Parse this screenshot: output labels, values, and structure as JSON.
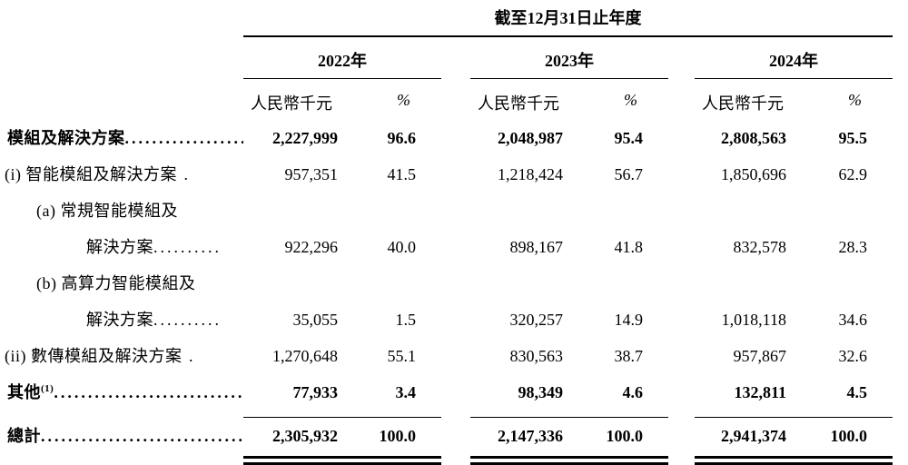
{
  "table": {
    "period_header": "截至12月31日止年度",
    "years": [
      "2022年",
      "2023年",
      "2024年"
    ],
    "col_amount": "人民幣千元",
    "col_percent": "%",
    "rows": [
      {
        "label": "模組及解決方案",
        "dots": "........................",
        "values": [
          "2,227,999",
          "96.6",
          "2,048,987",
          "95.4",
          "2,808,563",
          "95.5"
        ]
      },
      {
        "label": "(i) 智能模組及解決方案",
        "dots": " .",
        "values": [
          "957,351",
          "41.5",
          "1,218,424",
          "56.7",
          "1,850,696",
          "62.9"
        ]
      },
      {
        "label": "(a) 常規智能模組及",
        "dots": "",
        "values": [
          "",
          "",
          "",
          "",
          "",
          ""
        ]
      },
      {
        "label": "解決方案",
        "dots": "..........",
        "values": [
          "922,296",
          "40.0",
          "898,167",
          "41.8",
          "832,578",
          "28.3"
        ]
      },
      {
        "label": "(b) 高算力智能模組及",
        "dots": "",
        "values": [
          "",
          "",
          "",
          "",
          "",
          ""
        ]
      },
      {
        "label": "解決方案",
        "dots": "..........",
        "values": [
          "35,055",
          "1.5",
          "320,257",
          "14.9",
          "1,018,118",
          "34.6"
        ]
      },
      {
        "label": "(ii) 數傳模組及解決方案",
        "dots": " .",
        "values": [
          "1,270,648",
          "55.1",
          "830,563",
          "38.7",
          "957,867",
          "32.6"
        ]
      },
      {
        "label": "其他",
        "sup": "(1)",
        "dots": "................................",
        "values": [
          "77,933",
          "3.4",
          "98,349",
          "4.6",
          "132,811",
          "4.5"
        ]
      }
    ],
    "total": {
      "label": "總計",
      "dots": "................................",
      "values": [
        "2,305,932",
        "100.0",
        "2,147,336",
        "100.0",
        "2,941,374",
        "100.0"
      ]
    }
  }
}
